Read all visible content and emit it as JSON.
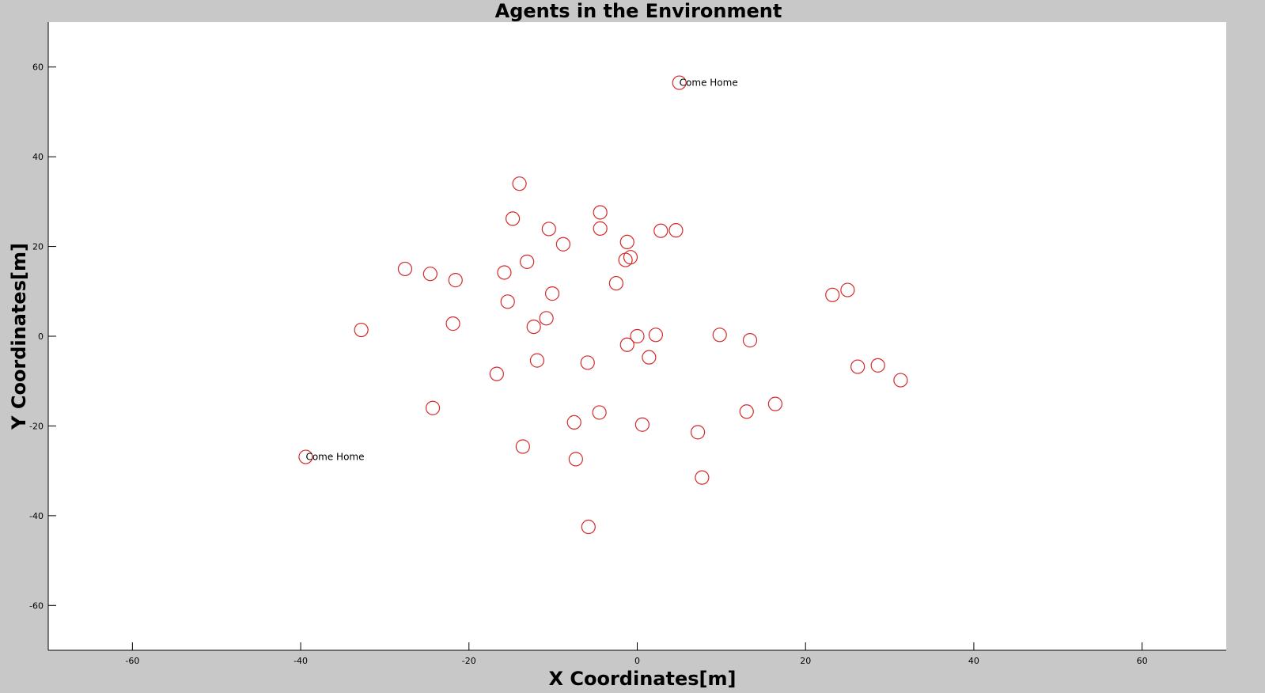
{
  "chart_data": {
    "type": "scatter",
    "title": "Agents in the Environment",
    "xlabel": "X Coordinates[m]",
    "ylabel": "Y Coordinates[m]",
    "xlim": [
      -70,
      70
    ],
    "ylim": [
      -70,
      70
    ],
    "xticks": [
      -60,
      -40,
      -20,
      0,
      20,
      40,
      60
    ],
    "yticks": [
      -60,
      -40,
      -20,
      0,
      20,
      40,
      60
    ],
    "xtick_labels": [
      "-60",
      "-40",
      "-20",
      "0",
      "20",
      "40",
      "60"
    ],
    "ytick_labels": [
      "-60",
      "-40",
      "-20",
      "0",
      "20",
      "40",
      "60"
    ],
    "grid": false,
    "marker": "circle",
    "series": [
      {
        "color": "#d42a2a",
        "points": [
          [
            5.0,
            56.5
          ],
          [
            -14.0,
            34.0
          ],
          [
            -14.8,
            26.2
          ],
          [
            -4.4,
            27.6
          ],
          [
            -4.4,
            24.0
          ],
          [
            -10.5,
            23.9
          ],
          [
            -8.8,
            20.5
          ],
          [
            -1.2,
            21.0
          ],
          [
            2.8,
            23.5
          ],
          [
            4.6,
            23.6
          ],
          [
            -1.4,
            17.0
          ],
          [
            -0.8,
            17.6
          ],
          [
            -13.1,
            16.6
          ],
          [
            -15.8,
            14.2
          ],
          [
            -27.6,
            15.0
          ],
          [
            -24.6,
            13.9
          ],
          [
            -21.6,
            12.5
          ],
          [
            -2.5,
            11.8
          ],
          [
            -10.1,
            9.5
          ],
          [
            23.2,
            9.2
          ],
          [
            25.0,
            10.3
          ],
          [
            -15.4,
            7.7
          ],
          [
            -10.8,
            4.0
          ],
          [
            -12.3,
            2.1
          ],
          [
            -21.9,
            2.8
          ],
          [
            -32.8,
            1.4
          ],
          [
            0.0,
            0.0
          ],
          [
            2.2,
            0.3
          ],
          [
            9.8,
            0.3
          ],
          [
            13.4,
            -0.9
          ],
          [
            -1.2,
            -1.9
          ],
          [
            1.4,
            -4.7
          ],
          [
            -11.9,
            -5.4
          ],
          [
            -5.9,
            -5.9
          ],
          [
            26.2,
            -6.8
          ],
          [
            28.6,
            -6.5
          ],
          [
            31.3,
            -9.8
          ],
          [
            -16.7,
            -8.4
          ],
          [
            -24.3,
            -16.0
          ],
          [
            16.4,
            -15.1
          ],
          [
            13.0,
            -16.8
          ],
          [
            -4.5,
            -17.0
          ],
          [
            -7.5,
            -19.2
          ],
          [
            0.6,
            -19.7
          ],
          [
            7.2,
            -21.4
          ],
          [
            -13.6,
            -24.6
          ],
          [
            -7.3,
            -27.4
          ],
          [
            -39.4,
            -26.9
          ],
          [
            7.7,
            -31.5
          ],
          [
            -5.8,
            -42.5
          ]
        ]
      }
    ],
    "annotations": [
      {
        "text": "Come Home",
        "x": 5.0,
        "y": 56.5
      },
      {
        "text": "Come Home",
        "x": -39.4,
        "y": -26.9
      }
    ]
  }
}
